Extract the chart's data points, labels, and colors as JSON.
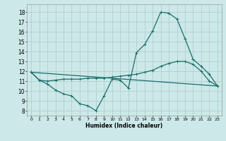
{
  "title": "",
  "xlabel": "Humidex (Indice chaleur)",
  "bg_color": "#cce8e8",
  "grid_color": "#b0d0d0",
  "line_color": "#1a6e6a",
  "xlim": [
    -0.5,
    23.5
  ],
  "ylim": [
    7.5,
    18.8
  ],
  "yticks": [
    8,
    9,
    10,
    11,
    12,
    13,
    14,
    15,
    16,
    17,
    18
  ],
  "xticks": [
    0,
    1,
    2,
    3,
    4,
    5,
    6,
    7,
    8,
    9,
    10,
    11,
    12,
    13,
    14,
    15,
    16,
    17,
    18,
    19,
    20,
    21,
    22,
    23
  ],
  "line1_x": [
    0,
    1,
    2,
    3,
    4,
    5,
    6,
    7,
    8,
    9,
    10,
    11,
    12,
    13,
    14,
    15,
    16,
    17,
    18,
    19,
    20,
    21,
    22,
    23
  ],
  "line1_y": [
    11.9,
    11.1,
    10.7,
    10.1,
    9.7,
    9.5,
    8.7,
    8.5,
    8.0,
    9.5,
    11.2,
    11.1,
    10.3,
    13.9,
    14.7,
    16.1,
    18.0,
    17.9,
    17.3,
    15.3,
    13.2,
    12.5,
    11.7,
    10.5
  ],
  "line2_x": [
    0,
    1,
    2,
    3,
    4,
    5,
    6,
    7,
    8,
    9,
    10,
    11,
    12,
    13,
    14,
    15,
    16,
    17,
    18,
    19,
    20,
    21,
    22,
    23
  ],
  "line2_y": [
    11.9,
    11.1,
    11.0,
    11.1,
    11.2,
    11.2,
    11.2,
    11.3,
    11.3,
    11.3,
    11.4,
    11.5,
    11.6,
    11.7,
    11.9,
    12.1,
    12.5,
    12.8,
    13.0,
    13.0,
    12.7,
    12.0,
    11.0,
    10.5
  ],
  "line3_x": [
    0,
    23
  ],
  "line3_y": [
    11.9,
    10.5
  ],
  "linewidth": 0.9,
  "marker_size": 2.5
}
